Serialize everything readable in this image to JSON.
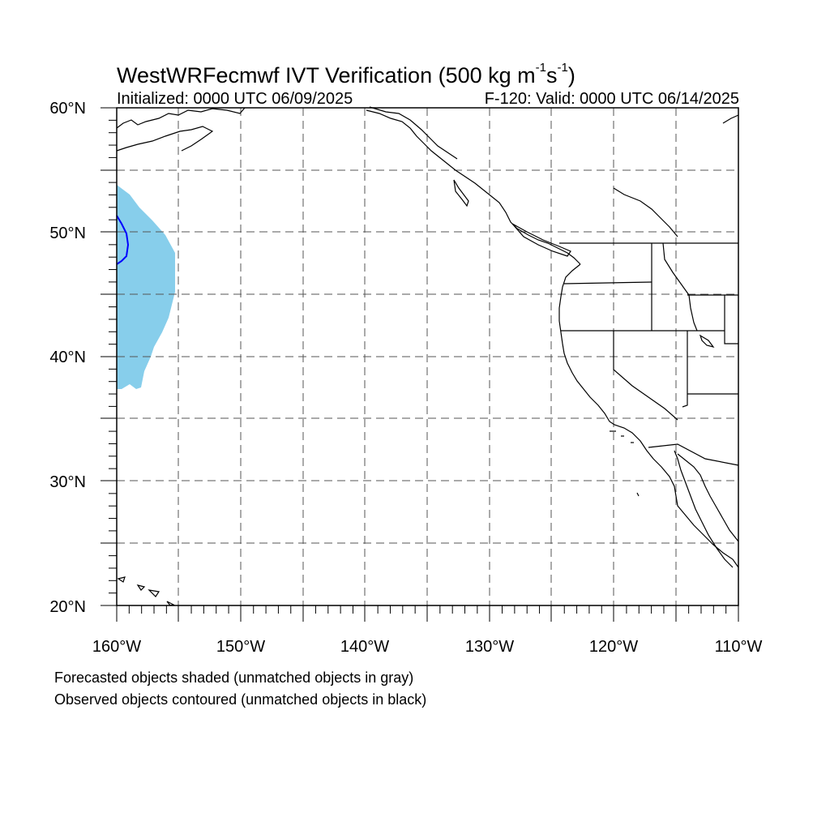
{
  "header": {
    "title_main": "WestWRFecmwf IVT Verification (500 kg m",
    "title_exp1": "-1",
    "title_mid": "s",
    "title_exp2": "-1",
    "title_end": ")",
    "initialized": "Initialized: 0000 UTC 06/09/2025",
    "valid": "F-120: Valid: 0000 UTC 06/14/2025"
  },
  "map": {
    "lat_labels": [
      "60°N",
      "50°N",
      "40°N",
      "30°N",
      "20°N"
    ],
    "lon_labels": [
      "160°W",
      "150°W",
      "140°W",
      "130°W",
      "120°W",
      "110°W"
    ],
    "forecast_object_color": "#87ceeb",
    "observed_contour_color": "#0000ff",
    "coastline_color": "#000000",
    "gridline_color": "#555555"
  },
  "footer": {
    "line1": "Forecasted objects shaded (unmatched objects in gray)",
    "line2": "Observed objects contoured (unmatched objects in black)"
  }
}
